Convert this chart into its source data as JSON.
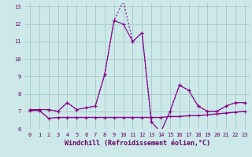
{
  "xlabel": "Windchill (Refroidissement éolien,°C)",
  "background_color": "#cce8e8",
  "grid_color": "#aacccc",
  "line_color": "#880088",
  "xlim": [
    -0.5,
    23.5
  ],
  "ylim": [
    6,
    13.2
  ],
  "yticks": [
    6,
    7,
    8,
    9,
    10,
    11,
    12,
    13
  ],
  "xticks": [
    0,
    1,
    2,
    3,
    4,
    5,
    6,
    7,
    8,
    9,
    10,
    11,
    12,
    13,
    14,
    15,
    16,
    17,
    18,
    19,
    20,
    21,
    22,
    23
  ],
  "series1_x": [
    0,
    1,
    2,
    3,
    4,
    5,
    6,
    7,
    8,
    9,
    10,
    11,
    12,
    13,
    14,
    15,
    16,
    17,
    18,
    19,
    20,
    21,
    22,
    23
  ],
  "series1_y": [
    7.1,
    7.1,
    7.1,
    7.0,
    7.5,
    7.1,
    7.2,
    7.3,
    9.1,
    12.2,
    12.0,
    11.0,
    11.5,
    6.4,
    5.8,
    7.0,
    8.5,
    8.2,
    7.3,
    7.0,
    7.0,
    7.3,
    7.5,
    7.5
  ],
  "series2_x": [
    0,
    1,
    2,
    3,
    4,
    5,
    6,
    7,
    8,
    9,
    10,
    11,
    12,
    13,
    14,
    15,
    16,
    17,
    18,
    19,
    20,
    21,
    22,
    23
  ],
  "series2_y": [
    7.1,
    7.1,
    7.1,
    7.0,
    7.5,
    7.1,
    7.2,
    7.3,
    9.1,
    12.2,
    13.3,
    11.0,
    11.5,
    6.4,
    5.8,
    7.0,
    8.5,
    8.2,
    7.3,
    7.0,
    7.0,
    7.3,
    7.5,
    7.5
  ],
  "series3_x": [
    0,
    1,
    2,
    3,
    4,
    5,
    6,
    7,
    8,
    9,
    10,
    11,
    12,
    13,
    14,
    15,
    16,
    17,
    18,
    19,
    20,
    21,
    22,
    23
  ],
  "series3_y": [
    7.05,
    7.05,
    6.6,
    6.65,
    6.65,
    6.65,
    6.65,
    6.65,
    6.65,
    6.65,
    6.65,
    6.65,
    6.65,
    6.65,
    6.65,
    6.7,
    6.7,
    6.75,
    6.75,
    6.8,
    6.85,
    6.9,
    6.95,
    7.0
  ],
  "font_color": "#660066",
  "tick_fontsize": 5.0,
  "label_fontsize": 6.0
}
